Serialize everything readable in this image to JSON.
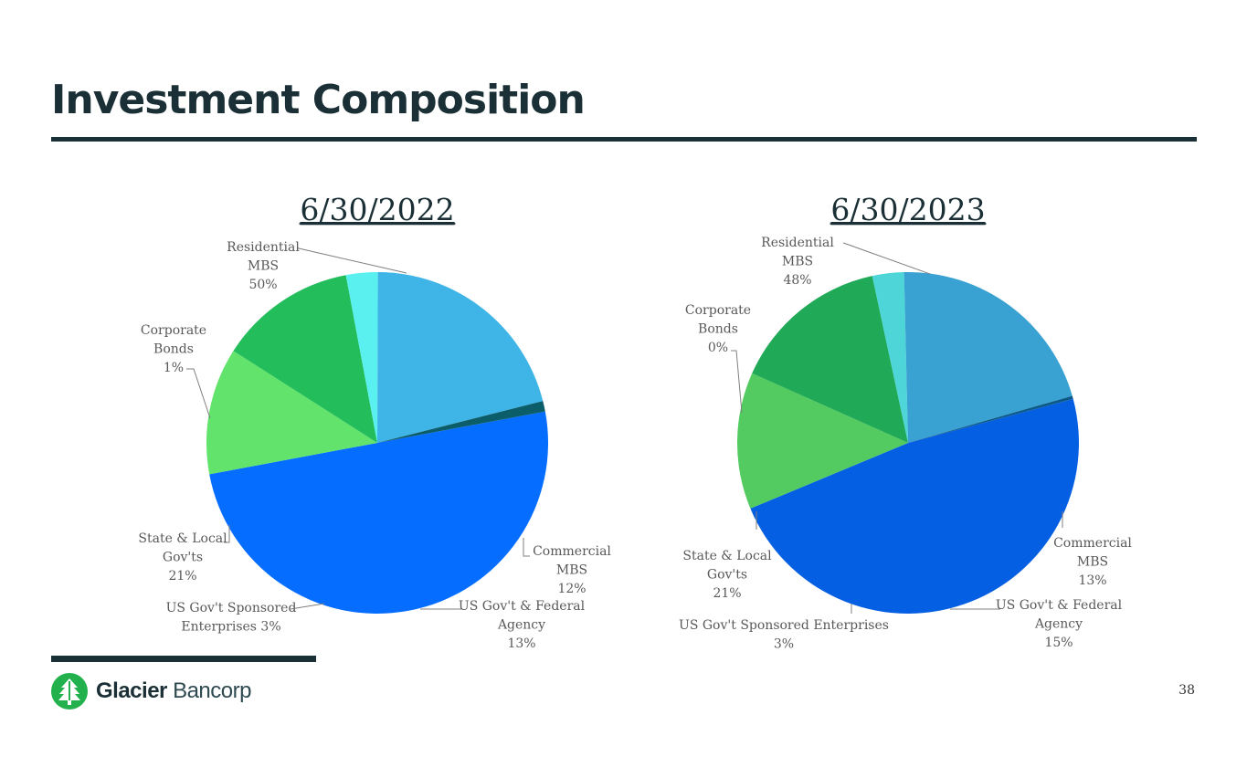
{
  "slide": {
    "title": "Investment Composition",
    "page_number": "38",
    "logo": {
      "icon": "glacier-tree-icon",
      "brand": "Glacier",
      "suffix": "Bancorp",
      "color": "#23b14d"
    },
    "colors": {
      "dark": "#1b3036"
    }
  },
  "chart_data": [
    {
      "type": "pie",
      "title": "6/30/2022",
      "slices": [
        {
          "name": "Residential MBS",
          "label_lines": [
            "Residential",
            "MBS",
            "50%"
          ],
          "value": 50,
          "color": "#056dff"
        },
        {
          "name": "Commercial MBS",
          "label_lines": [
            "Commercial",
            "MBS",
            "12%"
          ],
          "value": 12,
          "color": "#62e36c"
        },
        {
          "name": "US Gov't & Federal Agency",
          "label_lines": [
            "US Gov't & Federal",
            "Agency",
            "13%"
          ],
          "value": 13,
          "color": "#23bd5c"
        },
        {
          "name": "US Gov't Sponsored Enterprises",
          "label_lines": [
            "US Gov't Sponsored",
            "Enterprises 3%"
          ],
          "value": 3,
          "color": "#59f0ef"
        },
        {
          "name": "State & Local Gov'ts",
          "label_lines": [
            "State & Local",
            "Gov'ts",
            "21%"
          ],
          "value": 21,
          "color": "#3fb5e7"
        },
        {
          "name": "Corporate Bonds",
          "label_lines": [
            "Corporate",
            "Bonds",
            "1%"
          ],
          "value": 1,
          "color": "#0c5d6a"
        }
      ]
    },
    {
      "type": "pie",
      "title": "6/30/2023",
      "slices": [
        {
          "name": "Residential MBS",
          "label_lines": [
            "Residential",
            "MBS",
            "48%"
          ],
          "value": 48,
          "color": "#055fe2"
        },
        {
          "name": "Commercial MBS",
          "label_lines": [
            "Commercial",
            "MBS",
            "13%"
          ],
          "value": 13,
          "color": "#53cb60"
        },
        {
          "name": "US Gov't & Federal Agency",
          "label_lines": [
            "US Gov't & Federal",
            "Agency",
            "15%"
          ],
          "value": 15,
          "color": "#20a957"
        },
        {
          "name": "US Gov't Sponsored Enterprises",
          "label_lines": [
            "US Gov't Sponsored Enterprises",
            "3%"
          ],
          "value": 3,
          "color": "#4dd5d8"
        },
        {
          "name": "State & Local Gov'ts",
          "label_lines": [
            "State & Local",
            "Gov'ts",
            "21%"
          ],
          "value": 21,
          "color": "#3aa2d2"
        },
        {
          "name": "Corporate Bonds",
          "label_lines": [
            "Corporate",
            "Bonds",
            "0%"
          ],
          "value": 0.3,
          "color": "#0b5a8a"
        }
      ]
    }
  ]
}
